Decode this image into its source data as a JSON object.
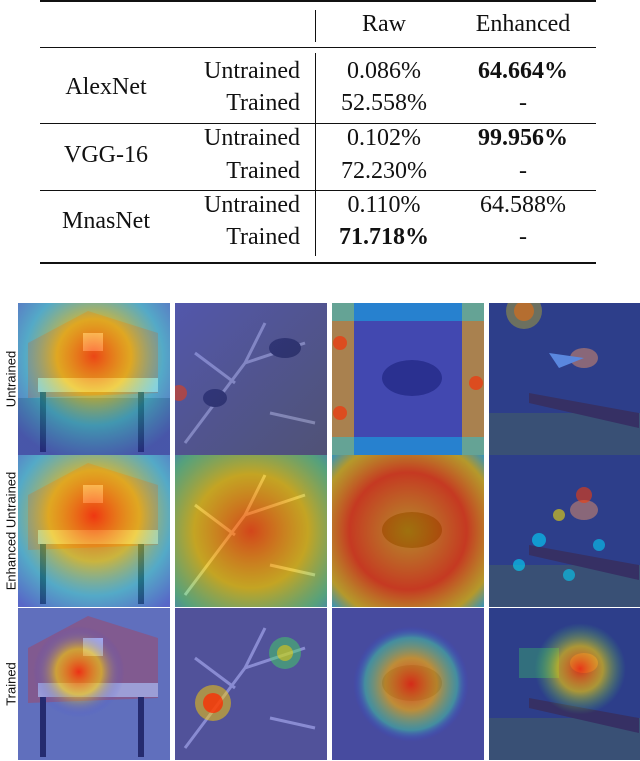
{
  "table": {
    "columns": [
      "",
      "",
      "Raw",
      "Enhanced"
    ],
    "groups": [
      {
        "model": "AlexNet",
        "rows": [
          {
            "state": "Untrained",
            "raw": "0.086%",
            "raw_bold": false,
            "enhanced": "64.664%",
            "enhanced_bold": true
          },
          {
            "state": "Trained",
            "raw": "52.558%",
            "raw_bold": false,
            "enhanced": "-",
            "enhanced_bold": false
          }
        ]
      },
      {
        "model": "VGG-16",
        "rows": [
          {
            "state": "Untrained",
            "raw": "0.102%",
            "raw_bold": false,
            "enhanced": "99.956%",
            "enhanced_bold": true
          },
          {
            "state": "Trained",
            "raw": "72.230%",
            "raw_bold": false,
            "enhanced": "-",
            "enhanced_bold": false
          }
        ]
      },
      {
        "model": "MnasNet",
        "rows": [
          {
            "state": "Untrained",
            "raw": "0.110%",
            "raw_bold": false,
            "enhanced": "64.588%",
            "enhanced_bold": false
          },
          {
            "state": "Trained",
            "raw": "71.718%",
            "raw_bold": true,
            "enhanced": "-",
            "enhanced_bold": false
          }
        ]
      }
    ]
  },
  "figure": {
    "row_labels": [
      "Untrained",
      "Enhanced Untrained",
      "Trained"
    ],
    "images": [
      [
        "barn-scene",
        "bird-in-tree-scene",
        "bird-on-ground-scene",
        "bee-eater-on-branch-scene"
      ],
      [
        "barn-scene",
        "bird-in-tree-scene",
        "bird-on-ground-scene",
        "bee-eater-on-branch-scene"
      ],
      [
        "barn-scene",
        "bird-in-tree-scene",
        "bird-on-ground-scene",
        "bee-eater-on-branch-scene"
      ]
    ],
    "heatmap_colors": {
      "cold": "#2a3cff",
      "cool": "#00c8ff",
      "warm": "#ffe600",
      "hot": "#ff2a00"
    }
  }
}
